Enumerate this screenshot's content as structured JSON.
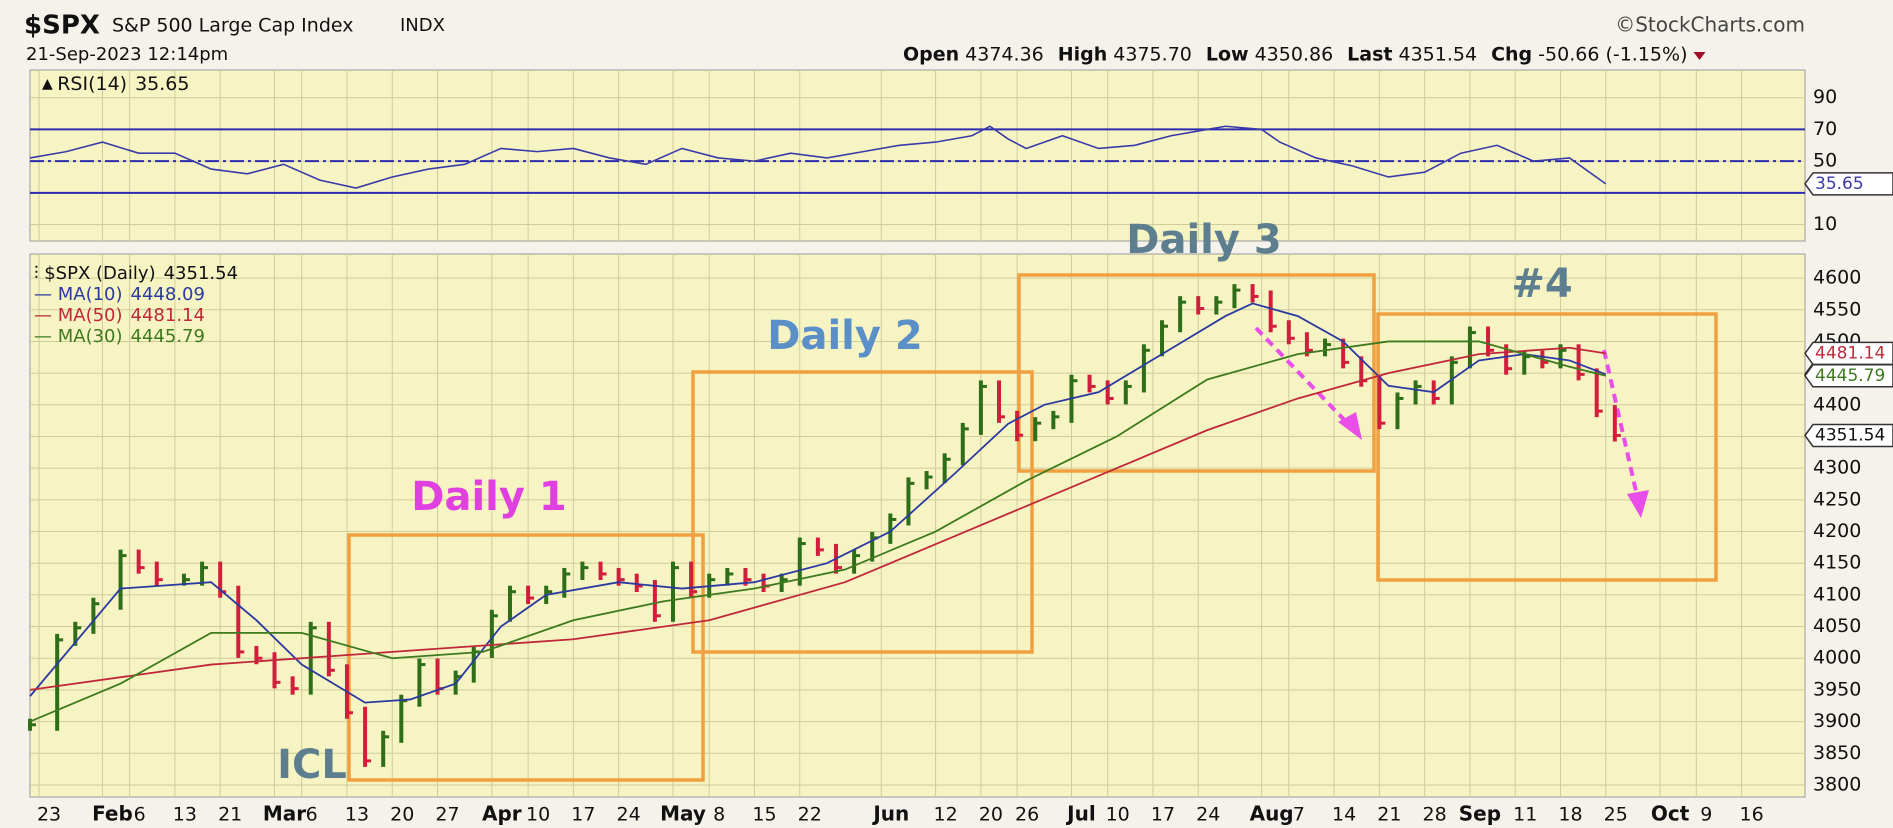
{
  "header": {
    "symbol": "$SPX",
    "name": "S&P 500 Large Cap Index",
    "exchange": "INDX",
    "source": "©StockCharts.com",
    "datetime": "21-Sep-2023 12:14pm",
    "quote": [
      {
        "label": "Open",
        "value": "4374.36"
      },
      {
        "label": "High",
        "value": "4375.70"
      },
      {
        "label": "Low",
        "value": "4350.86"
      },
      {
        "label": "Last",
        "value": "4351.54"
      },
      {
        "label": "Chg",
        "value": "-50.66 (-1.15%)"
      }
    ]
  },
  "chart_data": [
    {
      "type": "line",
      "xlim": [
        0,
        196
      ],
      "ylim": [
        -0.4,
        107.5
      ],
      "yticks": [
        10,
        50,
        70,
        90
      ],
      "levels": [
        70,
        50,
        30
      ],
      "level_color": "#2b2bb0",
      "series": [
        {
          "name": "RSI(14)",
          "color": "#3a3aa8",
          "x": [
            0,
            4,
            8,
            12,
            16,
            20,
            24,
            28,
            32,
            36,
            40,
            44,
            48,
            52,
            56,
            60,
            64,
            68,
            72,
            76,
            80,
            84,
            88,
            92,
            96,
            100,
            104,
            106,
            108,
            110,
            112,
            114,
            118,
            122,
            126,
            130,
            132,
            136,
            138,
            142,
            146,
            150,
            154,
            158,
            162,
            166,
            170,
            174
          ],
          "values": [
            52,
            56,
            62,
            55,
            55,
            45,
            42,
            48,
            38,
            33,
            40,
            45,
            48,
            58,
            56,
            58,
            52,
            48,
            58,
            52,
            50,
            55,
            52,
            56,
            60,
            62,
            66,
            72,
            64,
            58,
            62,
            66,
            58,
            60,
            66,
            70,
            72,
            70,
            62,
            52,
            47,
            40,
            43,
            55,
            60,
            50,
            52,
            35.65
          ]
        }
      ]
    },
    {
      "type": "price",
      "xlim": [
        0,
        196
      ],
      "ylim": [
        3781,
        4638
      ],
      "yticks": [
        3800,
        3850,
        3900,
        3950,
        4000,
        4050,
        4100,
        4150,
        4200,
        4250,
        4300,
        4350,
        4400,
        4450,
        4500,
        4550,
        4600
      ],
      "xticks": [
        {
          "value": 1,
          "label": "23"
        },
        {
          "value": 8,
          "label": "Feb"
        },
        {
          "value": 11,
          "label": "6"
        },
        {
          "value": 16,
          "label": "13"
        },
        {
          "value": 21,
          "label": "21"
        },
        {
          "value": 27,
          "label": "Mar"
        },
        {
          "value": 30,
          "label": "6"
        },
        {
          "value": 35,
          "label": "13"
        },
        {
          "value": 40,
          "label": "20"
        },
        {
          "value": 45,
          "label": "27"
        },
        {
          "value": 51,
          "label": "Apr"
        },
        {
          "value": 55,
          "label": "10"
        },
        {
          "value": 60,
          "label": "17"
        },
        {
          "value": 65,
          "label": "24"
        },
        {
          "value": 71,
          "label": "May"
        },
        {
          "value": 75,
          "label": "8"
        },
        {
          "value": 80,
          "label": "15"
        },
        {
          "value": 85,
          "label": "22"
        },
        {
          "value": 94,
          "label": "Jun"
        },
        {
          "value": 100,
          "label": "12"
        },
        {
          "value": 105,
          "label": "20"
        },
        {
          "value": 109,
          "label": "26"
        },
        {
          "value": 115,
          "label": "Jul"
        },
        {
          "value": 119,
          "label": "10"
        },
        {
          "value": 124,
          "label": "17"
        },
        {
          "value": 129,
          "label": "24"
        },
        {
          "value": 136,
          "label": "Aug"
        },
        {
          "value": 139,
          "label": "7"
        },
        {
          "value": 144,
          "label": "14"
        },
        {
          "value": 149,
          "label": "21"
        },
        {
          "value": 154,
          "label": "28"
        },
        {
          "value": 159,
          "label": "Sep"
        },
        {
          "value": 164,
          "label": "11"
        },
        {
          "value": 169,
          "label": "18"
        },
        {
          "value": 174,
          "label": "25"
        },
        {
          "value": 180,
          "label": "Oct"
        },
        {
          "value": 184,
          "label": "9"
        },
        {
          "value": 189,
          "label": "16"
        }
      ],
      "series": [
        {
          "name": "$SPX (Daily)",
          "up_color": "#2e6e18",
          "down_color": "#d01e3c",
          "x": [
            0,
            3,
            5,
            7,
            10,
            12,
            14,
            17,
            19,
            21,
            23,
            25,
            27,
            29,
            31,
            33,
            35,
            37,
            39,
            41,
            43,
            45,
            47,
            49,
            51,
            53,
            55,
            57,
            59,
            61,
            63,
            65,
            67,
            69,
            71,
            73,
            75,
            77,
            79,
            81,
            83,
            85,
            87,
            89,
            91,
            93,
            95,
            97,
            99,
            101,
            103,
            105,
            107,
            109,
            111,
            113,
            115,
            117,
            119,
            121,
            123,
            125,
            127,
            129,
            131,
            133,
            135,
            137,
            139,
            141,
            143,
            145,
            147,
            149,
            151,
            153,
            155,
            157,
            159,
            161,
            163,
            165,
            167,
            169,
            171,
            173,
            175
          ],
          "values": [
            3895,
            4029,
            4048,
            4086,
            4162,
            4143,
            4124,
            4124,
            4143,
            4105,
            4010,
            4000,
            3962,
            3952,
            4048,
            3981,
            3914,
            3838,
            3876,
            3933,
            3990,
            3952,
            3971,
            4010,
            4067,
            4105,
            4095,
            4105,
            4133,
            4143,
            4133,
            4124,
            4114,
            4067,
            4143,
            4105,
            4124,
            4133,
            4124,
            4114,
            4124,
            4181,
            4171,
            4143,
            4162,
            4190,
            4219,
            4276,
            4286,
            4314,
            4362,
            4429,
            4381,
            4352,
            4371,
            4381,
            4438,
            4429,
            4410,
            4429,
            4486,
            4524,
            4562,
            4552,
            4562,
            4581,
            4571,
            4524,
            4505,
            4486,
            4495,
            4467,
            4438,
            4371,
            4410,
            4429,
            4410,
            4467,
            4514,
            4486,
            4457,
            4476,
            4467,
            4486,
            4448,
            4390,
            4351.54
          ]
        },
        {
          "name": "MA(10)",
          "color": "#2a3aa0",
          "x": [
            0,
            10,
            20,
            25,
            30,
            37,
            42,
            47,
            52,
            57,
            65,
            72,
            80,
            88,
            95,
            102,
            108,
            112,
            118,
            125,
            132,
            135,
            140,
            145,
            150,
            155,
            160,
            165,
            170,
            174
          ],
          "values": [
            3940,
            4110,
            4120,
            4060,
            3990,
            3930,
            3935,
            3960,
            4050,
            4100,
            4120,
            4110,
            4120,
            4150,
            4200,
            4290,
            4370,
            4400,
            4420,
            4480,
            4540,
            4560,
            4540,
            4500,
            4430,
            4420,
            4470,
            4480,
            4470,
            4448.09
          ]
        },
        {
          "name": "MA(50)",
          "color": "#c0283a",
          "x": [
            0,
            20,
            40,
            60,
            75,
            90,
            100,
            110,
            120,
            130,
            140,
            150,
            160,
            170,
            174
          ],
          "values": [
            3950,
            3990,
            4010,
            4030,
            4060,
            4120,
            4180,
            4240,
            4300,
            4360,
            4410,
            4450,
            4480,
            4490,
            4481.14
          ]
        },
        {
          "name": "MA(30)",
          "color": "#3d7a1e",
          "x": [
            0,
            10,
            20,
            30,
            40,
            50,
            60,
            70,
            80,
            90,
            100,
            110,
            120,
            130,
            140,
            150,
            160,
            170,
            174
          ],
          "values": [
            3900,
            3960,
            4040,
            4040,
            4000,
            4010,
            4060,
            4090,
            4110,
            4140,
            4200,
            4280,
            4350,
            4440,
            4480,
            4500,
            4500,
            4460,
            4445.79
          ]
        }
      ],
      "annotations": [
        {
          "text": "Daily 1",
          "color": "#e040e0"
        },
        {
          "text": "Daily 2",
          "color": "#5b8fc7"
        },
        {
          "text": "Daily 3",
          "color": "#5d7e8e"
        },
        {
          "text": "#4",
          "color": "#5d7e8e"
        },
        {
          "text": "ICL",
          "color": "#5d7e8e"
        }
      ]
    }
  ]
}
